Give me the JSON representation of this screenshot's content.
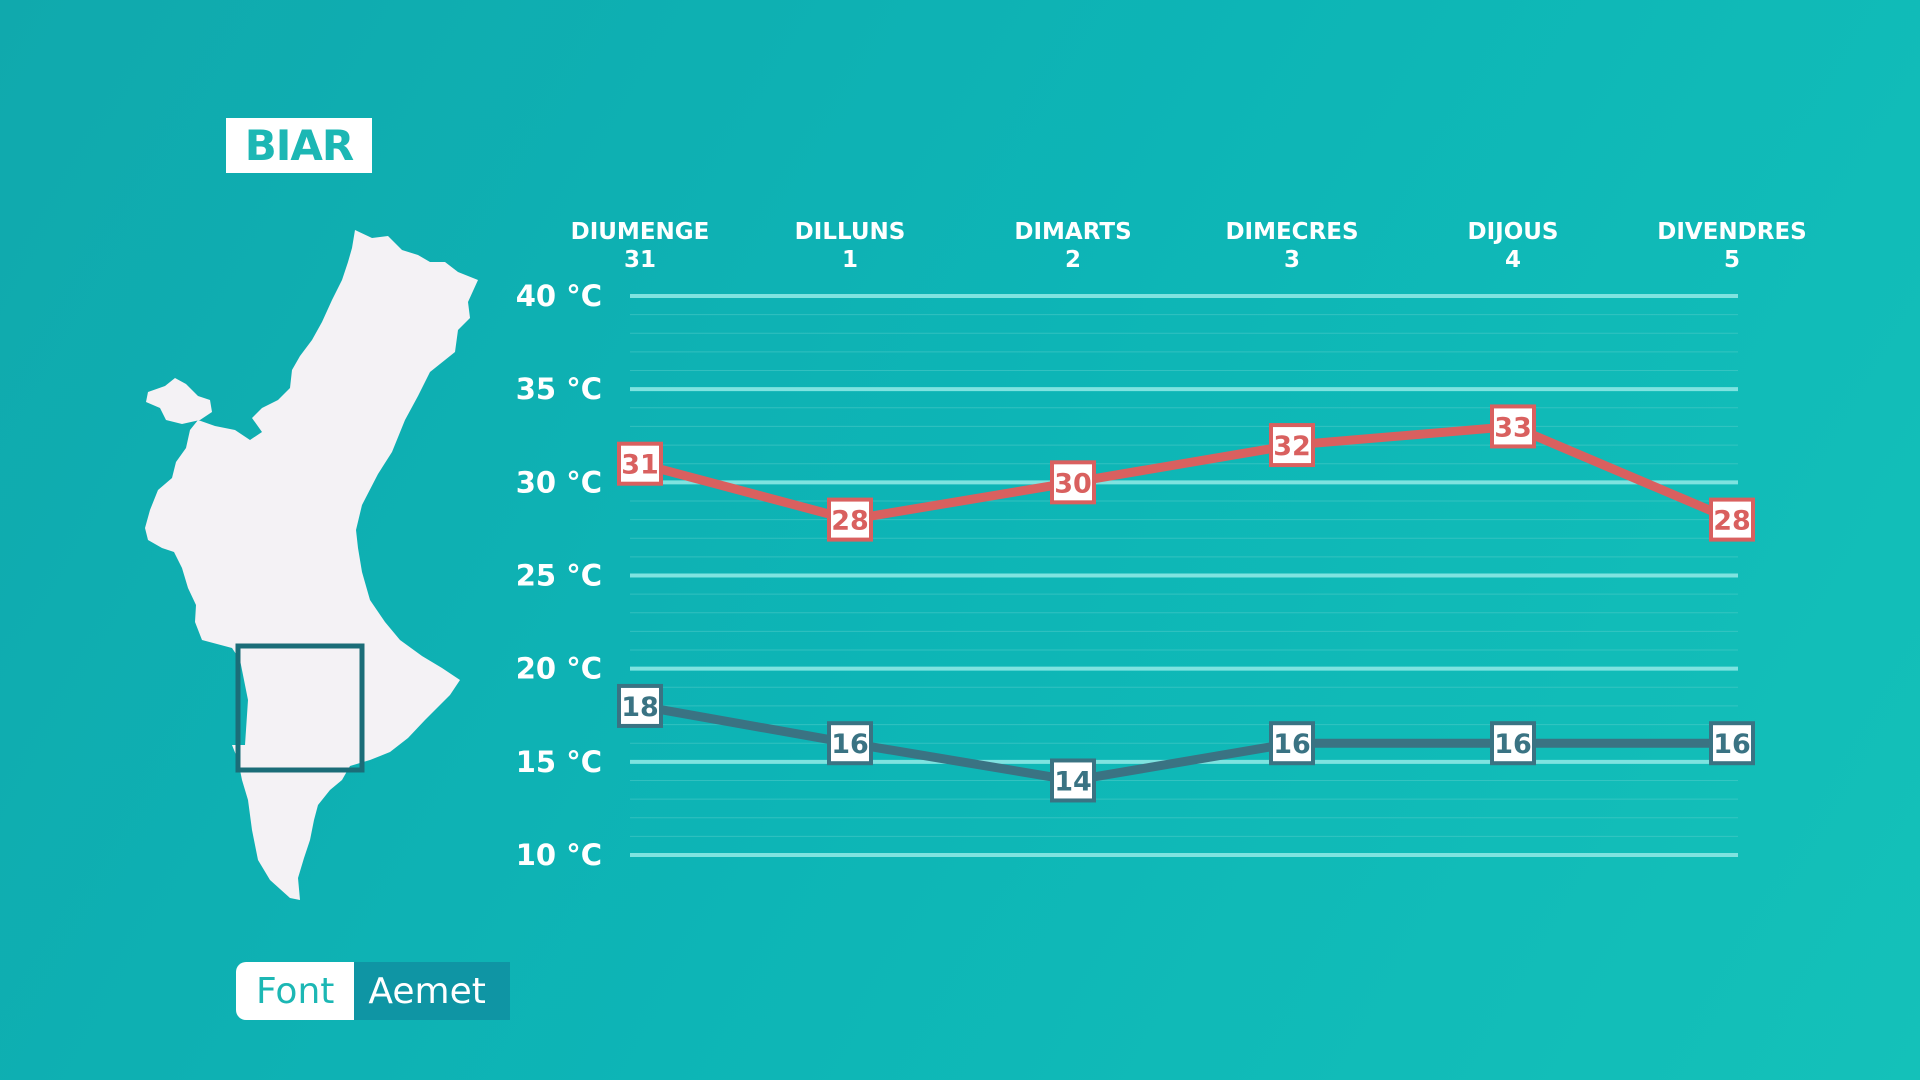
{
  "location": "BIAR",
  "source": {
    "label": "Font",
    "value": "Aemet"
  },
  "colors": {
    "background": "#0fb3b3",
    "max_line": "#d9605f",
    "min_line": "#3a7383",
    "gridline": "#7fe3e0",
    "map_fill": "#f4f2f5",
    "map_marker": "#1b6d78"
  },
  "chart_data": {
    "type": "line",
    "categories": [
      {
        "day": "DIUMENGE",
        "date": "31"
      },
      {
        "day": "DILLUNS",
        "date": "1"
      },
      {
        "day": "DIMARTS",
        "date": "2"
      },
      {
        "day": "DIMECRES",
        "date": "3"
      },
      {
        "day": "DIJOUS",
        "date": "4"
      },
      {
        "day": "DIVENDRES",
        "date": "5"
      }
    ],
    "series": [
      {
        "values": [
          31,
          28,
          30,
          32,
          33,
          28
        ],
        "color": "#d9605f"
      },
      {
        "values": [
          18,
          16,
          14,
          16,
          16,
          16
        ],
        "color": "#3a7383"
      }
    ],
    "y_ticks": [
      "40 °C",
      "35 °C",
      "30 °C",
      "25 °C",
      "20 °C",
      "15 °C",
      "10 °C"
    ],
    "y_tick_values": [
      40,
      35,
      30,
      25,
      20,
      15,
      10
    ],
    "ylim": [
      10,
      40
    ],
    "grid": true,
    "legend": "none"
  }
}
